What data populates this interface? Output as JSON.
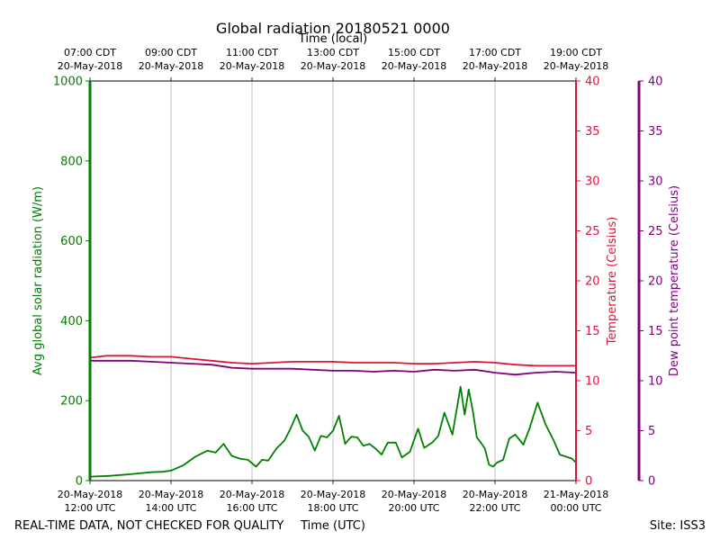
{
  "chart_data": {
    "type": "line",
    "title": "Global radiation 20180521 0000",
    "top_axis_label": "Time (local)",
    "xlabel": "Time (UTC)",
    "footer_left": "REAL-TIME DATA, NOT CHECKED FOR QUALITY",
    "footer_right": "Site: ISS3",
    "x_range_hours": [
      12,
      24
    ],
    "x_ticks": [
      {
        "hour": 12,
        "utc_date": "20-May-2018",
        "utc_time": "12:00 UTC",
        "local_time": "07:00 CDT",
        "local_date": "20-May-2018"
      },
      {
        "hour": 14,
        "utc_date": "20-May-2018",
        "utc_time": "14:00 UTC",
        "local_time": "09:00 CDT",
        "local_date": "20-May-2018"
      },
      {
        "hour": 16,
        "utc_date": "20-May-2018",
        "utc_time": "16:00 UTC",
        "local_time": "11:00 CDT",
        "local_date": "20-May-2018"
      },
      {
        "hour": 18,
        "utc_date": "20-May-2018",
        "utc_time": "18:00 UTC",
        "local_time": "13:00 CDT",
        "local_date": "20-May-2018"
      },
      {
        "hour": 20,
        "utc_date": "20-May-2018",
        "utc_time": "20:00 UTC",
        "local_time": "15:00 CDT",
        "local_date": "20-May-2018"
      },
      {
        "hour": 22,
        "utc_date": "20-May-2018",
        "utc_time": "22:00 UTC",
        "local_time": "17:00 CDT",
        "local_date": "20-May-2018"
      },
      {
        "hour": 24,
        "utc_date": "21-May-2018",
        "utc_time": "00:00 UTC",
        "local_time": "19:00 CDT",
        "local_date": "20-May-2018"
      }
    ],
    "axes": {
      "left": {
        "label": "Avg global solar radiation (W/m)",
        "ylim": [
          0,
          1000
        ],
        "ticks": [
          0,
          200,
          400,
          600,
          800,
          1000
        ],
        "color": "#008000"
      },
      "right": {
        "label": "Temperature (Celsius)",
        "ylim": [
          0,
          40
        ],
        "ticks": [
          0,
          5,
          10,
          15,
          20,
          25,
          30,
          35,
          40
        ],
        "color": "#dc143c"
      },
      "far_right": {
        "label": "Dew point temperature (Celsius)",
        "ylim": [
          0,
          40
        ],
        "ticks": [
          0,
          5,
          10,
          15,
          20,
          25,
          30,
          35,
          40
        ],
        "color": "#800080"
      }
    },
    "series": [
      {
        "name": "Avg global solar radiation",
        "axis": "left",
        "color": "#008000",
        "x": [
          12.0,
          12.5,
          13.0,
          13.5,
          13.8,
          14.0,
          14.3,
          14.6,
          14.9,
          15.1,
          15.3,
          15.5,
          15.7,
          15.9,
          16.1,
          16.25,
          16.4,
          16.6,
          16.8,
          16.95,
          17.1,
          17.25,
          17.4,
          17.55,
          17.7,
          17.85,
          18.0,
          18.15,
          18.3,
          18.45,
          18.6,
          18.75,
          18.9,
          19.05,
          19.2,
          19.35,
          19.55,
          19.7,
          19.9,
          20.1,
          20.25,
          20.45,
          20.6,
          20.75,
          20.95,
          21.15,
          21.25,
          21.35,
          21.45,
          21.55,
          21.65,
          21.75,
          21.85,
          21.95,
          22.05,
          22.2,
          22.35,
          22.5,
          22.7,
          22.85,
          23.05,
          23.25,
          23.45,
          23.6,
          23.75,
          23.9,
          24.0
        ],
        "values": [
          10,
          12,
          16,
          21,
          22,
          25,
          38,
          60,
          75,
          70,
          92,
          62,
          55,
          52,
          35,
          52,
          50,
          80,
          100,
          130,
          165,
          125,
          110,
          75,
          112,
          108,
          125,
          162,
          92,
          110,
          108,
          87,
          92,
          80,
          65,
          95,
          95,
          58,
          72,
          130,
          82,
          95,
          112,
          170,
          115,
          235,
          165,
          228,
          175,
          108,
          95,
          80,
          40,
          35,
          45,
          52,
          105,
          115,
          90,
          130,
          195,
          140,
          100,
          65,
          60,
          55,
          45
        ]
      },
      {
        "name": "Temperature",
        "axis": "right",
        "color": "#dc143c",
        "x": [
          12.0,
          12.4,
          13.0,
          13.5,
          14.0,
          14.5,
          15.0,
          15.5,
          16.0,
          16.5,
          17.0,
          17.5,
          18.0,
          18.5,
          19.0,
          19.5,
          20.0,
          20.5,
          21.0,
          21.5,
          22.0,
          22.5,
          23.0,
          23.5,
          24.0
        ],
        "values": [
          12.3,
          12.5,
          12.5,
          12.4,
          12.4,
          12.2,
          12.0,
          11.8,
          11.7,
          11.8,
          11.9,
          11.9,
          11.9,
          11.8,
          11.8,
          11.8,
          11.7,
          11.7,
          11.8,
          11.9,
          11.8,
          11.6,
          11.5,
          11.5,
          11.5
        ]
      },
      {
        "name": "Dew point temperature",
        "axis": "far_right",
        "color": "#800080",
        "x": [
          12.0,
          12.4,
          13.0,
          13.5,
          14.0,
          14.5,
          15.0,
          15.5,
          16.0,
          16.5,
          17.0,
          17.5,
          18.0,
          18.5,
          19.0,
          19.5,
          20.0,
          20.5,
          21.0,
          21.5,
          22.0,
          22.5,
          23.0,
          23.5,
          24.0
        ],
        "values": [
          12.0,
          12.0,
          12.0,
          11.9,
          11.8,
          11.7,
          11.6,
          11.3,
          11.2,
          11.2,
          11.2,
          11.1,
          11.0,
          11.0,
          10.9,
          11.0,
          10.9,
          11.1,
          11.0,
          11.1,
          10.8,
          10.6,
          10.8,
          10.9,
          10.8
        ]
      }
    ]
  }
}
